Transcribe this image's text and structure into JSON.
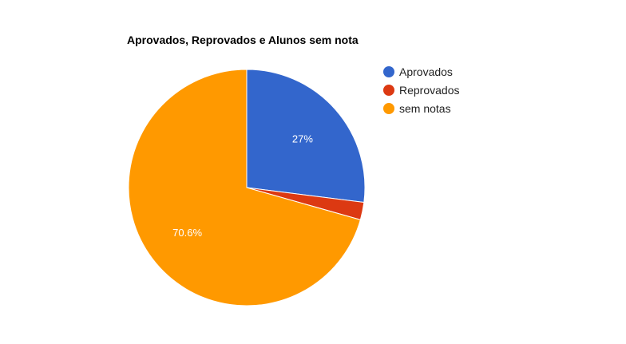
{
  "chart_data": {
    "type": "pie",
    "title": "Aprovados, Reprovados e Alunos sem nota",
    "categories": [
      "Aprovados",
      "Reprovados",
      "sem notas"
    ],
    "values": [
      27,
      2.4,
      70.6
    ],
    "data_labels": [
      "27%",
      "",
      "70.6%"
    ],
    "colors": [
      "#3366cc",
      "#dc3912",
      "#ff9900"
    ],
    "legend_position": "right"
  }
}
